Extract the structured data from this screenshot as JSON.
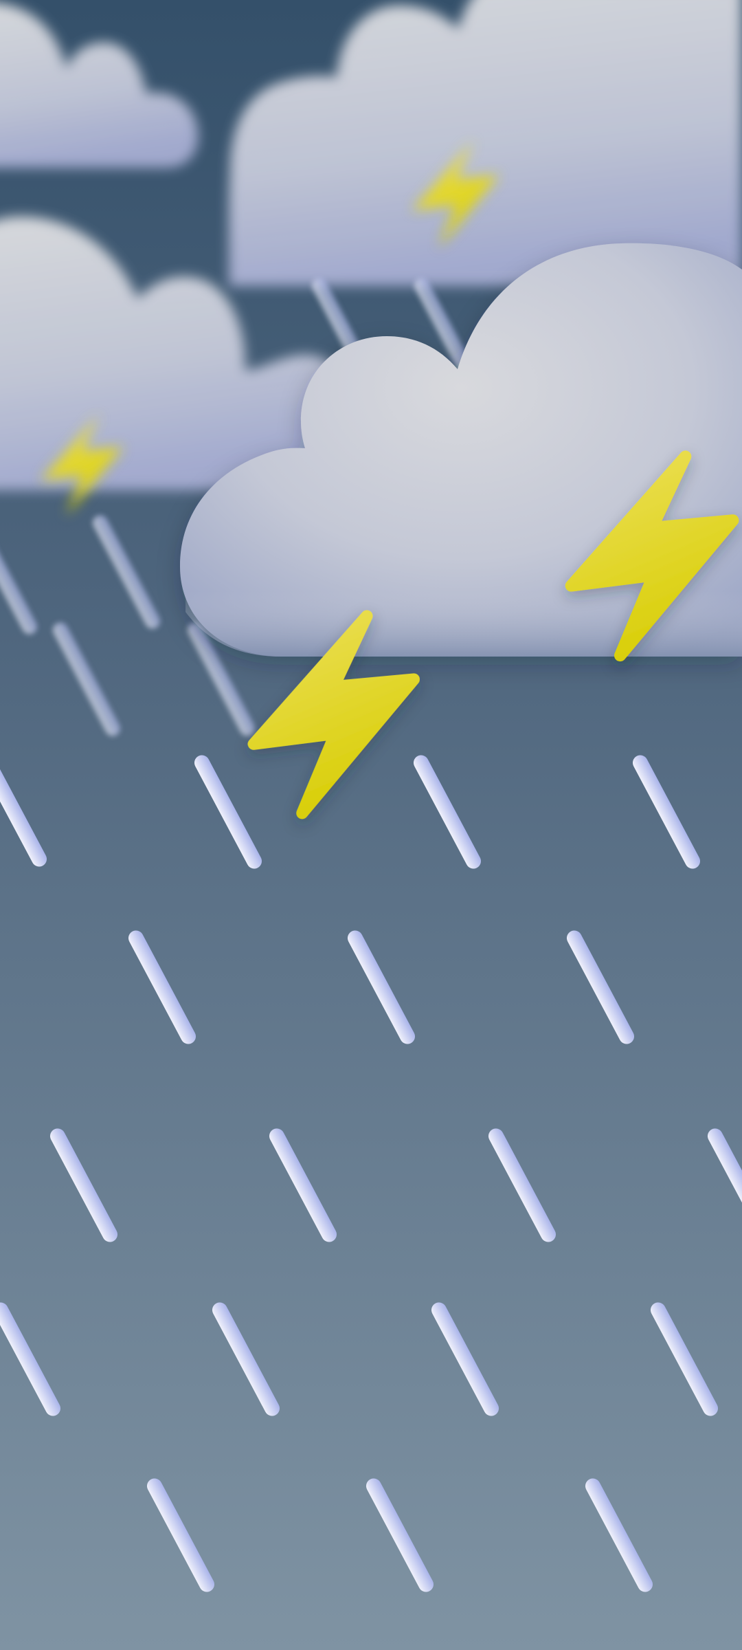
{
  "scene": {
    "type": "thunderstorm-weather-wallpaper",
    "colors": {
      "sky_top": "#34506a",
      "sky_mid": "#4f667e",
      "sky_bottom": "#7f93a3",
      "cloud_light": "#d8d9dd",
      "cloud_shadow": "#a7aed3",
      "lightning_light": "#ede05a",
      "lightning_dark": "#d9cf0a",
      "rain_light": "#f0f1fb",
      "rain_dark": "#a9b4ea"
    },
    "icons": [
      "cloud-icon",
      "lightning-bolt-icon",
      "raindrop-icon"
    ],
    "layers": {
      "background_clouds": 3,
      "foreground_clouds": 1,
      "lightning_bolts": 4,
      "rain_streaks": 30
    }
  }
}
